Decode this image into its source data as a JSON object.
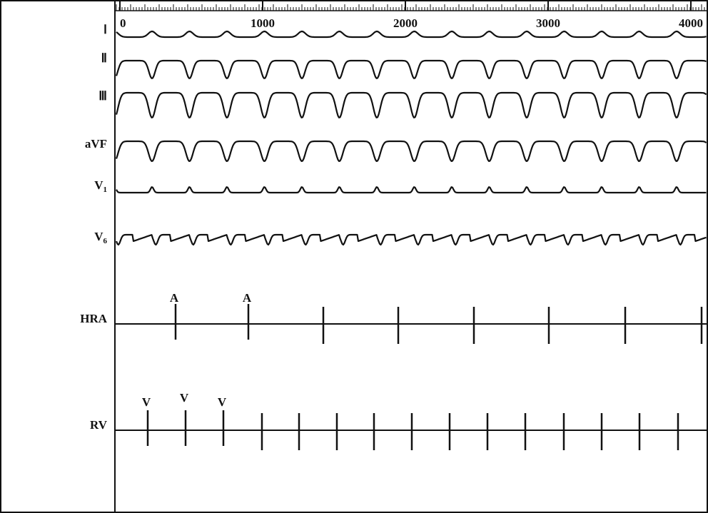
{
  "axis": {
    "unit_ticks": [
      0,
      1000,
      2000,
      3000,
      4000
    ],
    "xlim": [
      0,
      4150
    ]
  },
  "leads": [
    {
      "label": "Ⅰ"
    },
    {
      "label": "Ⅱ"
    },
    {
      "label": "Ⅲ"
    },
    {
      "label": "aVF"
    },
    {
      "label": "V",
      "sub": "1"
    },
    {
      "label": "V",
      "sub": "6"
    },
    {
      "label": "HRA",
      "marker": "A",
      "spikes": [
        390,
        900,
        1425,
        1950,
        2480,
        3005,
        3540,
        4075
      ]
    },
    {
      "label": "RV",
      "marker": "V",
      "spikes": [
        195,
        460,
        725,
        995,
        1255,
        1520,
        1780,
        2045,
        2310,
        2575,
        2840,
        3110,
        3375,
        3640,
        3910
      ]
    }
  ]
}
